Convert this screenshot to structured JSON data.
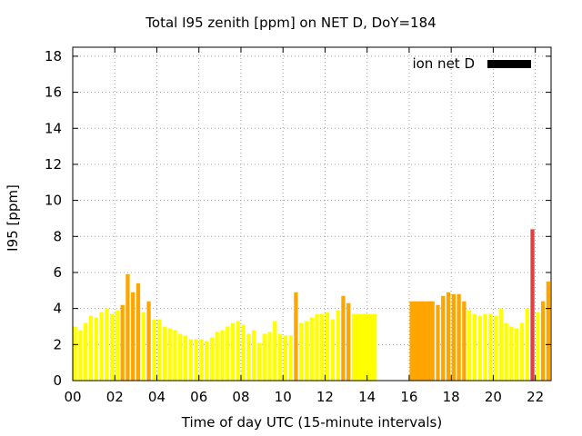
{
  "chart_data": {
    "type": "bar",
    "title": "Total I95 zenith [ppm] on NET D, DoY=184",
    "xlabel": "Time of day UTC (15-minute intervals)",
    "ylabel": "I95 [ppm]",
    "xlim": [
      0,
      22.75
    ],
    "ylim": [
      0,
      18.5
    ],
    "xticks": [
      {
        "v": 0,
        "label": "00"
      },
      {
        "v": 2,
        "label": "02"
      },
      {
        "v": 4,
        "label": "04"
      },
      {
        "v": 6,
        "label": "06"
      },
      {
        "v": 8,
        "label": "08"
      },
      {
        "v": 10,
        "label": "10"
      },
      {
        "v": 12,
        "label": "12"
      },
      {
        "v": 14,
        "label": "14"
      },
      {
        "v": 16,
        "label": "16"
      },
      {
        "v": 18,
        "label": "18"
      },
      {
        "v": 20,
        "label": "20"
      },
      {
        "v": 22,
        "label": "22"
      }
    ],
    "yticks": [
      0,
      2,
      4,
      6,
      8,
      10,
      12,
      14,
      16,
      18
    ],
    "grid": true,
    "legend": {
      "label": "ion net D",
      "position": "top-right",
      "color": "#000000"
    },
    "colors": {
      "low": "#ffff00",
      "medium": "#ffa500",
      "high": "#e04040"
    },
    "bars": [
      {
        "x": 0.0,
        "w": 0.25,
        "value": 3.0,
        "level": "low"
      },
      {
        "x": 0.25,
        "w": 0.25,
        "value": 2.8,
        "level": "low"
      },
      {
        "x": 0.5,
        "w": 0.25,
        "value": 3.2,
        "level": "low"
      },
      {
        "x": 0.75,
        "w": 0.25,
        "value": 3.6,
        "level": "low"
      },
      {
        "x": 1.0,
        "w": 0.25,
        "value": 3.5,
        "level": "low"
      },
      {
        "x": 1.25,
        "w": 0.25,
        "value": 3.8,
        "level": "low"
      },
      {
        "x": 1.5,
        "w": 0.25,
        "value": 4.0,
        "level": "low"
      },
      {
        "x": 1.75,
        "w": 0.25,
        "value": 3.7,
        "level": "low"
      },
      {
        "x": 2.0,
        "w": 0.25,
        "value": 3.9,
        "level": "low"
      },
      {
        "x": 2.25,
        "w": 0.25,
        "value": 4.2,
        "level": "medium"
      },
      {
        "x": 2.5,
        "w": 0.25,
        "value": 5.9,
        "level": "medium"
      },
      {
        "x": 2.75,
        "w": 0.25,
        "value": 4.9,
        "level": "medium"
      },
      {
        "x": 3.0,
        "w": 0.25,
        "value": 5.4,
        "level": "medium"
      },
      {
        "x": 3.25,
        "w": 0.25,
        "value": 3.8,
        "level": "low"
      },
      {
        "x": 3.5,
        "w": 0.25,
        "value": 4.4,
        "level": "medium"
      },
      {
        "x": 3.75,
        "w": 0.25,
        "value": 3.4,
        "level": "low"
      },
      {
        "x": 4.0,
        "w": 0.25,
        "value": 3.4,
        "level": "low"
      },
      {
        "x": 4.25,
        "w": 0.25,
        "value": 3.0,
        "level": "low"
      },
      {
        "x": 4.5,
        "w": 0.25,
        "value": 2.9,
        "level": "low"
      },
      {
        "x": 4.75,
        "w": 0.25,
        "value": 2.8,
        "level": "low"
      },
      {
        "x": 5.0,
        "w": 0.25,
        "value": 2.6,
        "level": "low"
      },
      {
        "x": 5.25,
        "w": 0.25,
        "value": 2.5,
        "level": "low"
      },
      {
        "x": 5.5,
        "w": 0.25,
        "value": 2.3,
        "level": "low"
      },
      {
        "x": 5.75,
        "w": 0.25,
        "value": 2.3,
        "level": "low"
      },
      {
        "x": 6.0,
        "w": 0.25,
        "value": 2.3,
        "level": "low"
      },
      {
        "x": 6.25,
        "w": 0.25,
        "value": 2.2,
        "level": "low"
      },
      {
        "x": 6.5,
        "w": 0.25,
        "value": 2.4,
        "level": "low"
      },
      {
        "x": 6.75,
        "w": 0.25,
        "value": 2.7,
        "level": "low"
      },
      {
        "x": 7.0,
        "w": 0.25,
        "value": 2.8,
        "level": "low"
      },
      {
        "x": 7.25,
        "w": 0.25,
        "value": 3.0,
        "level": "low"
      },
      {
        "x": 7.5,
        "w": 0.25,
        "value": 3.2,
        "level": "low"
      },
      {
        "x": 7.75,
        "w": 0.25,
        "value": 3.3,
        "level": "low"
      },
      {
        "x": 8.0,
        "w": 0.25,
        "value": 3.1,
        "level": "low"
      },
      {
        "x": 8.25,
        "w": 0.25,
        "value": 2.6,
        "level": "low"
      },
      {
        "x": 8.5,
        "w": 0.25,
        "value": 2.8,
        "level": "low"
      },
      {
        "x": 8.75,
        "w": 0.25,
        "value": 2.1,
        "level": "low"
      },
      {
        "x": 9.0,
        "w": 0.25,
        "value": 2.6,
        "level": "low"
      },
      {
        "x": 9.25,
        "w": 0.25,
        "value": 2.7,
        "level": "low"
      },
      {
        "x": 9.5,
        "w": 0.25,
        "value": 3.3,
        "level": "low"
      },
      {
        "x": 9.75,
        "w": 0.25,
        "value": 2.6,
        "level": "low"
      },
      {
        "x": 10.0,
        "w": 0.25,
        "value": 2.5,
        "level": "low"
      },
      {
        "x": 10.25,
        "w": 0.25,
        "value": 2.5,
        "level": "low"
      },
      {
        "x": 10.5,
        "w": 0.25,
        "value": 4.9,
        "level": "medium"
      },
      {
        "x": 10.75,
        "w": 0.25,
        "value": 3.2,
        "level": "low"
      },
      {
        "x": 11.0,
        "w": 0.25,
        "value": 3.3,
        "level": "low"
      },
      {
        "x": 11.25,
        "w": 0.25,
        "value": 3.5,
        "level": "low"
      },
      {
        "x": 11.5,
        "w": 0.25,
        "value": 3.7,
        "level": "low"
      },
      {
        "x": 11.75,
        "w": 0.25,
        "value": 3.7,
        "level": "low"
      },
      {
        "x": 12.0,
        "w": 0.25,
        "value": 3.8,
        "level": "low"
      },
      {
        "x": 12.25,
        "w": 0.25,
        "value": 3.4,
        "level": "low"
      },
      {
        "x": 12.5,
        "w": 0.25,
        "value": 3.9,
        "level": "low"
      },
      {
        "x": 12.75,
        "w": 0.25,
        "value": 4.7,
        "level": "medium"
      },
      {
        "x": 13.0,
        "w": 0.25,
        "value": 4.3,
        "level": "medium"
      },
      {
        "x": 13.25,
        "w": 1.25,
        "value": 3.7,
        "level": "low"
      },
      {
        "x": 16.0,
        "w": 1.25,
        "value": 4.4,
        "level": "medium"
      },
      {
        "x": 17.25,
        "w": 0.25,
        "value": 4.2,
        "level": "medium"
      },
      {
        "x": 17.5,
        "w": 0.25,
        "value": 4.7,
        "level": "medium"
      },
      {
        "x": 17.75,
        "w": 0.25,
        "value": 4.9,
        "level": "medium"
      },
      {
        "x": 18.0,
        "w": 0.25,
        "value": 4.8,
        "level": "medium"
      },
      {
        "x": 18.25,
        "w": 0.25,
        "value": 4.8,
        "level": "medium"
      },
      {
        "x": 18.5,
        "w": 0.25,
        "value": 4.4,
        "level": "medium"
      },
      {
        "x": 18.75,
        "w": 0.25,
        "value": 3.9,
        "level": "low"
      },
      {
        "x": 19.0,
        "w": 0.25,
        "value": 3.7,
        "level": "low"
      },
      {
        "x": 19.25,
        "w": 0.25,
        "value": 3.6,
        "level": "low"
      },
      {
        "x": 19.5,
        "w": 0.25,
        "value": 3.7,
        "level": "low"
      },
      {
        "x": 19.75,
        "w": 0.25,
        "value": 3.7,
        "level": "low"
      },
      {
        "x": 20.0,
        "w": 0.25,
        "value": 3.6,
        "level": "low"
      },
      {
        "x": 20.25,
        "w": 0.25,
        "value": 4.0,
        "level": "low"
      },
      {
        "x": 20.5,
        "w": 0.25,
        "value": 3.2,
        "level": "low"
      },
      {
        "x": 20.75,
        "w": 0.25,
        "value": 3.0,
        "level": "low"
      },
      {
        "x": 21.0,
        "w": 0.25,
        "value": 2.9,
        "level": "low"
      },
      {
        "x": 21.25,
        "w": 0.25,
        "value": 3.2,
        "level": "low"
      },
      {
        "x": 21.5,
        "w": 0.25,
        "value": 4.0,
        "level": "low"
      },
      {
        "x": 21.75,
        "w": 0.25,
        "value": 8.4,
        "level": "high"
      },
      {
        "x": 22.0,
        "w": 0.25,
        "value": 3.8,
        "level": "low"
      },
      {
        "x": 22.25,
        "w": 0.25,
        "value": 4.4,
        "level": "medium"
      },
      {
        "x": 22.5,
        "w": 0.25,
        "value": 5.5,
        "level": "medium"
      }
    ]
  }
}
